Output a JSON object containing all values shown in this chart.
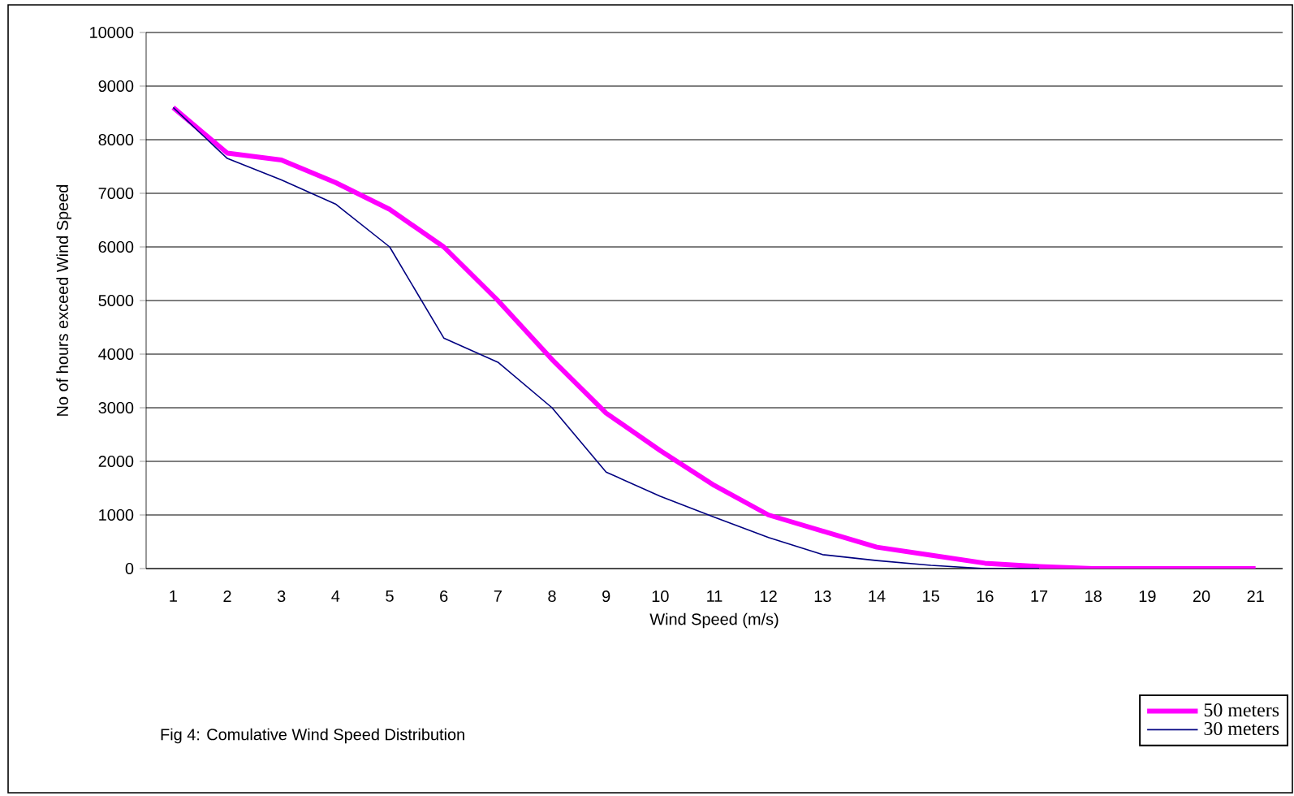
{
  "chart_data": {
    "type": "line",
    "categories": [
      "1",
      "2",
      "3",
      "4",
      "5",
      "6",
      "7",
      "8",
      "9",
      "10",
      "11",
      "12",
      "13",
      "14",
      "15",
      "16",
      "17",
      "18",
      "19",
      "20",
      "21"
    ],
    "xlabel": "Wind Speed (m/s)",
    "ylabel": "No of hours exceed Wind Speed",
    "annotations": [
      "Fig 4: Comulative Wind Speed Distribution"
    ],
    "ylim": [
      0,
      10000
    ],
    "yticks": [
      0,
      1000,
      2000,
      3000,
      4000,
      5000,
      6000,
      7000,
      8000,
      9000,
      10000
    ],
    "grid": "y",
    "legend": "bottom right",
    "marker": "none",
    "line_style": "solid",
    "series": [
      {
        "name": "50 meters",
        "color": "#ff00ff",
        "values": [
          8600,
          7750,
          7620,
          7200,
          6700,
          6000,
          5000,
          3900,
          2900,
          2200,
          1550,
          1000,
          700,
          400,
          250,
          100,
          40,
          0,
          0,
          0,
          0
        ]
      },
      {
        "name": "30 meters",
        "color": "#000080",
        "values": [
          8600,
          7650,
          7250,
          6800,
          6000,
          4300,
          3850,
          3000,
          1800,
          1350,
          960,
          580,
          260,
          150,
          60,
          0,
          0,
          null,
          null,
          null,
          null
        ]
      }
    ]
  }
}
